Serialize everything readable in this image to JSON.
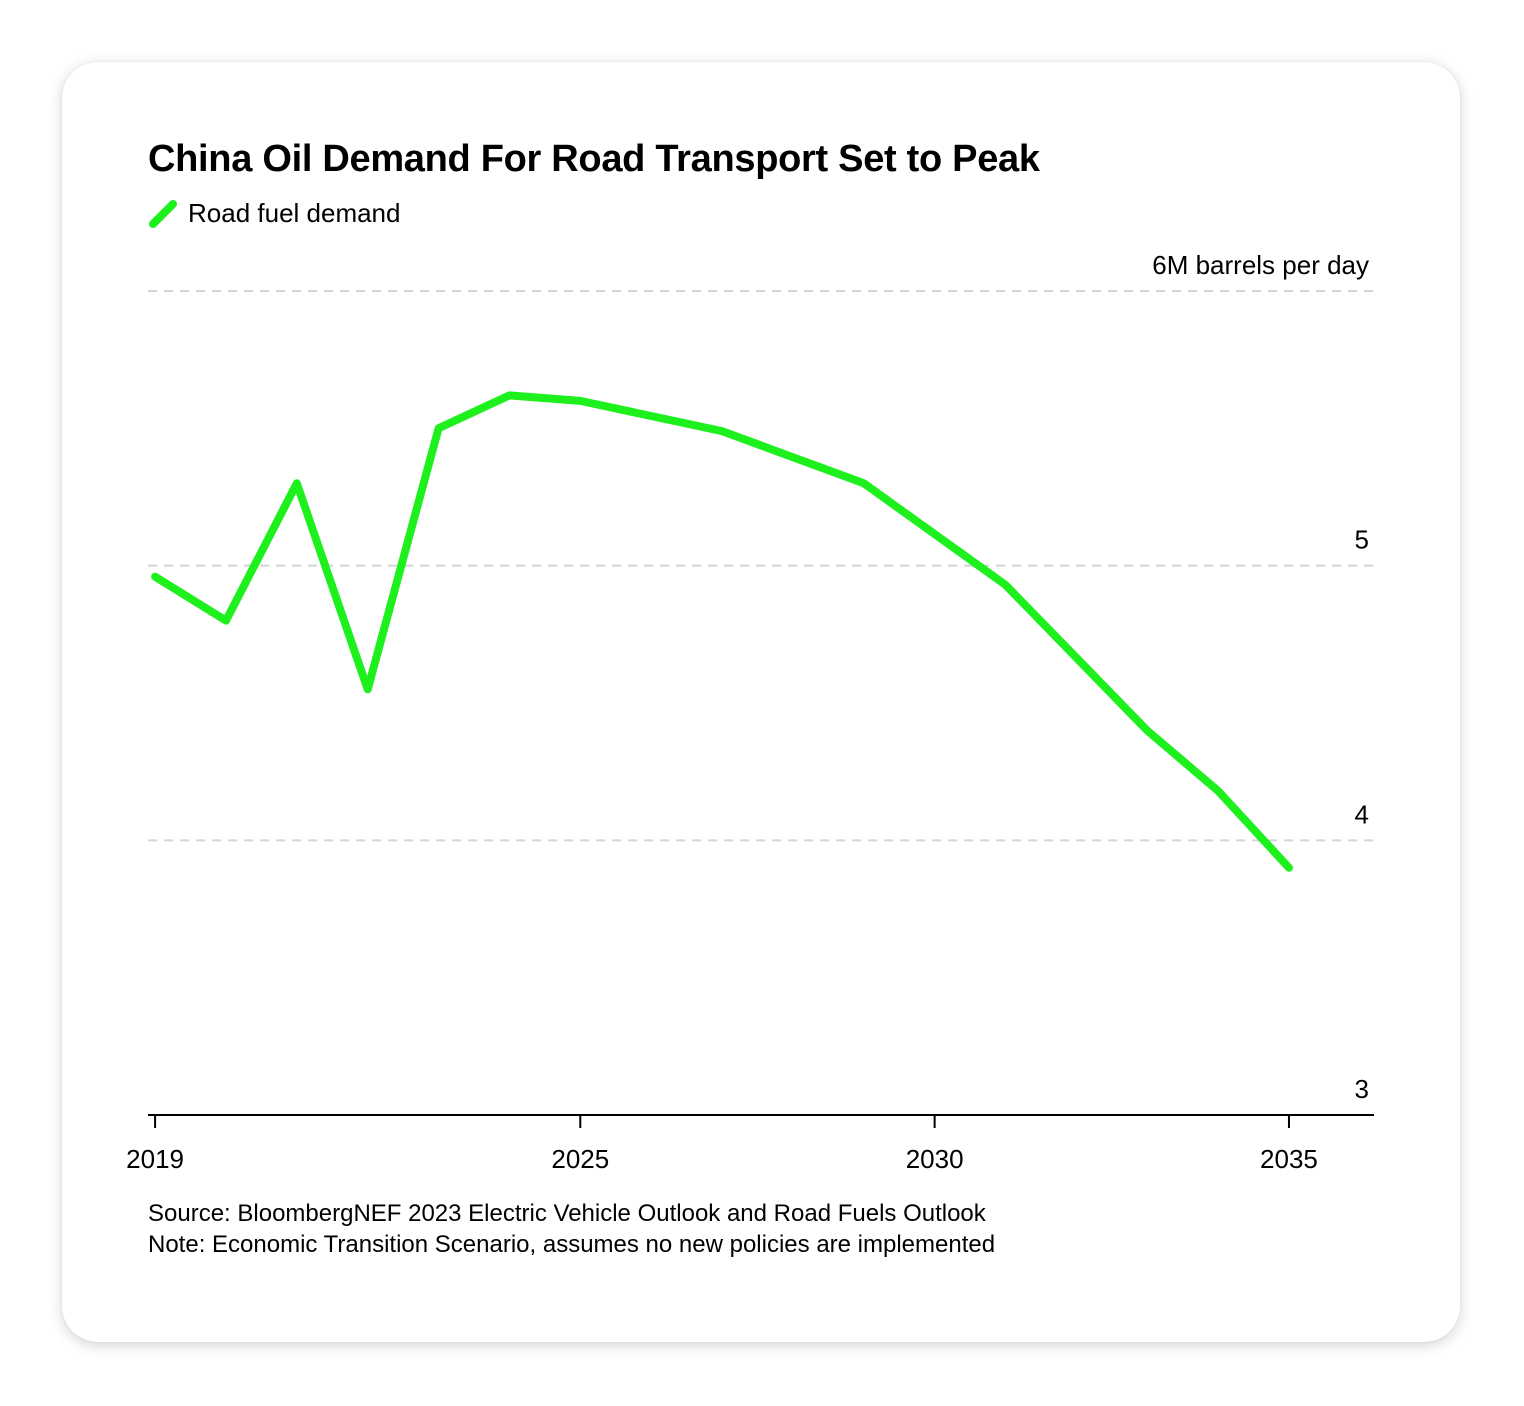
{
  "chart_data": {
    "type": "line",
    "title": "China Oil Demand For Road Transport Set to Peak",
    "unit_label": "6M barrels per day",
    "xlabel": "",
    "ylabel": "",
    "ylim": [
      3,
      6
    ],
    "xlim": [
      2018.9,
      2036.2
    ],
    "y_ticks": [
      3,
      4,
      5,
      6
    ],
    "y_tick_labels": [
      "3",
      "4",
      "5",
      "6M barrels per day"
    ],
    "x_ticks": [
      2019,
      2025,
      2030,
      2035
    ],
    "x_tick_labels": [
      "2019",
      "2025",
      "2030",
      "2035"
    ],
    "grid": true,
    "legend_position": "top-left",
    "series": [
      {
        "name": "Road fuel demand",
        "color": "#1ef01e",
        "x": [
          2019,
          2020,
          2021,
          2022,
          2023,
          2024,
          2025,
          2027,
          2029,
          2031,
          2033,
          2034,
          2035
        ],
        "y": [
          4.96,
          4.8,
          5.3,
          4.55,
          5.5,
          5.62,
          5.6,
          5.49,
          5.3,
          4.93,
          4.4,
          4.18,
          3.9
        ]
      }
    ]
  },
  "footer": {
    "source": "Source: BloombergNEF 2023 Electric Vehicle Outlook and Road Fuels Outlook",
    "note": "Note: Economic Transition Scenario, assumes no new policies are implemented"
  }
}
